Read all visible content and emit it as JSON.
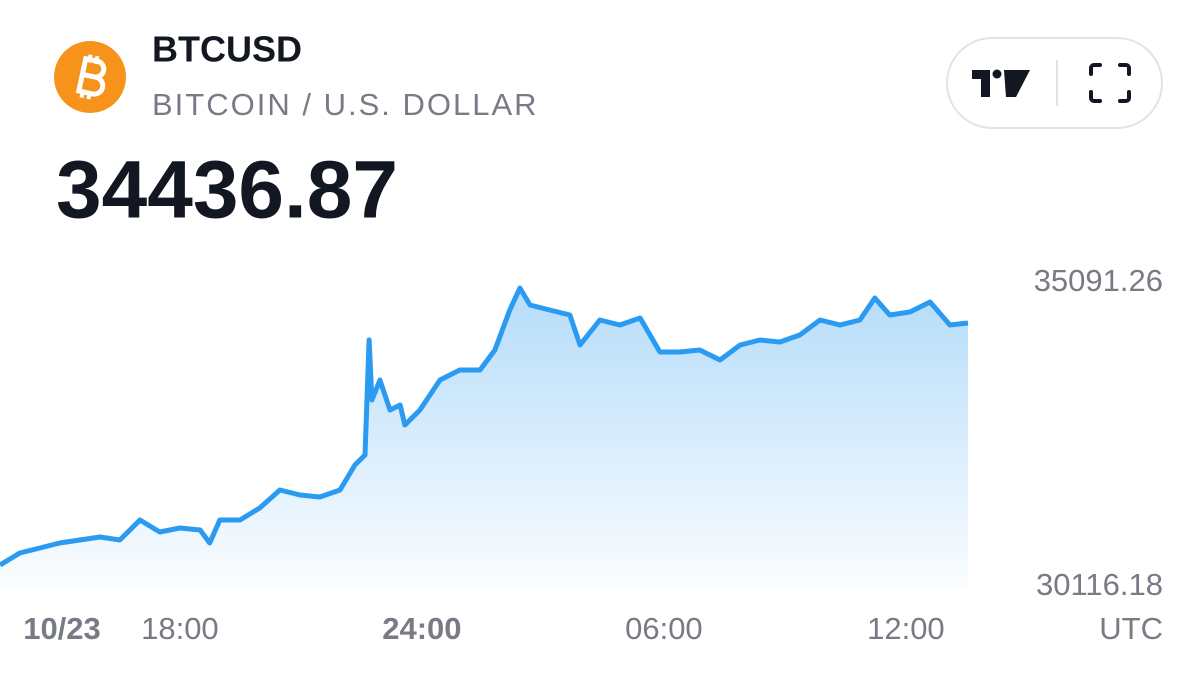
{
  "header": {
    "title": "BTCUSD",
    "subtitle": "BITCOIN / U.S. DOLLAR",
    "price": "34436.87"
  },
  "chart_data": {
    "type": "area",
    "color": "#2a9bf0",
    "date_label": "10/23",
    "timezone": "UTC",
    "x": [
      13.54,
      14.03,
      14.53,
      15.02,
      15.52,
      16.02,
      16.51,
      17.01,
      17.5,
      18.0,
      18.5,
      18.74,
      18.99,
      19.49,
      19.98,
      20.48,
      20.98,
      21.47,
      21.97,
      22.34,
      22.59,
      22.69,
      22.76,
      22.96,
      23.21,
      23.46,
      23.58,
      23.95,
      24.45,
      24.94,
      25.44,
      25.81,
      26.18,
      26.43,
      26.68,
      27.17,
      27.67,
      27.92,
      28.41,
      28.91,
      29.41,
      29.9,
      30.4,
      30.89,
      31.39,
      31.89,
      32.38,
      32.88,
      33.37,
      33.87,
      34.37,
      34.86,
      35.23,
      35.6,
      36.1,
      36.6,
      37.09,
      37.54
    ],
    "values": [
      30476,
      30672,
      30754,
      30836,
      30885,
      30934,
      30885,
      31212,
      31016,
      31082,
      31049,
      30836,
      31212,
      31212,
      31409,
      31703,
      31622,
      31589,
      31703,
      32113,
      32276,
      34158,
      33176,
      33504,
      33013,
      33094,
      32767,
      33013,
      33504,
      33667,
      33667,
      33995,
      34649,
      35009,
      34731,
      34649,
      34567,
      34076,
      34485,
      34404,
      34518,
      33962,
      33962,
      33995,
      33831,
      34076,
      34158,
      34125,
      34240,
      34485,
      34404,
      34485,
      34846,
      34567,
      34616,
      34780,
      34404,
      34437
    ],
    "xlim": [
      13.54,
      37.54
    ],
    "xticks": [
      {
        "value": 18,
        "label": "18:00"
      },
      {
        "value": 24,
        "label": "24:00"
      },
      {
        "value": 30,
        "label": "06:00"
      },
      {
        "value": 36,
        "label": "12:00"
      }
    ],
    "ylim": [
      30116.18,
      35091.26
    ],
    "yticks": [
      35091.26,
      30116.18
    ]
  }
}
